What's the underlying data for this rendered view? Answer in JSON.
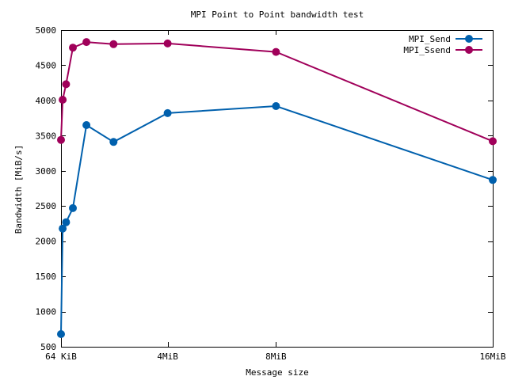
{
  "chart_data": {
    "type": "line",
    "title": "MPI Point to Point bandwidth test",
    "xlabel": "Message size",
    "ylabel": "Bandwidth [MiB/s]",
    "xlim": [
      64,
      16384
    ],
    "ylim": [
      500,
      5000
    ],
    "x_unit": "KiB",
    "x_ticks": [
      {
        "value": 64,
        "label": "64 KiB"
      },
      {
        "value": 4096,
        "label": "4MiB"
      },
      {
        "value": 8192,
        "label": "8MiB"
      },
      {
        "value": 16384,
        "label": "16MiB"
      }
    ],
    "y_ticks": [
      {
        "value": 500,
        "label": "500"
      },
      {
        "value": 1000,
        "label": "1000"
      },
      {
        "value": 1500,
        "label": "1500"
      },
      {
        "value": 2000,
        "label": "2000"
      },
      {
        "value": 2500,
        "label": "2500"
      },
      {
        "value": 3000,
        "label": "3000"
      },
      {
        "value": 3500,
        "label": "3500"
      },
      {
        "value": 4000,
        "label": "4000"
      },
      {
        "value": 4500,
        "label": "4500"
      },
      {
        "value": 5000,
        "label": "5000"
      }
    ],
    "grid": false,
    "legend_position": "top-right",
    "series": [
      {
        "name": "MPI_Send",
        "color": "#0060ad",
        "points": [
          {
            "x": 64,
            "y": 680
          },
          {
            "x": 128,
            "y": 2180
          },
          {
            "x": 256,
            "y": 2270
          },
          {
            "x": 512,
            "y": 2470
          },
          {
            "x": 1024,
            "y": 3650
          },
          {
            "x": 2048,
            "y": 3410
          },
          {
            "x": 4096,
            "y": 3820
          },
          {
            "x": 8192,
            "y": 3920
          },
          {
            "x": 16384,
            "y": 2870
          }
        ]
      },
      {
        "name": "MPI_Ssend",
        "color": "#a0005a",
        "points": [
          {
            "x": 64,
            "y": 3440
          },
          {
            "x": 128,
            "y": 4010
          },
          {
            "x": 256,
            "y": 4230
          },
          {
            "x": 512,
            "y": 4750
          },
          {
            "x": 1024,
            "y": 4830
          },
          {
            "x": 2048,
            "y": 4800
          },
          {
            "x": 4096,
            "y": 4810
          },
          {
            "x": 8192,
            "y": 4690
          },
          {
            "x": 16384,
            "y": 3420
          }
        ]
      }
    ]
  }
}
